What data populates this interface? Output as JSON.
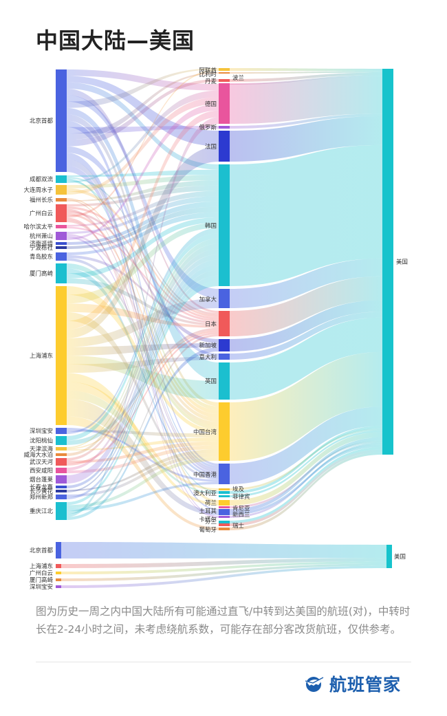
{
  "title": "中国大陆—美国",
  "caption": "图为历史一周之内中国大陆所有可能通过直飞/中转到达美国的航班(对)，中转时长在2-24小时之间，未考虑绕航系数，可能存在部分客改货航班，仅供参考。",
  "brand": {
    "name": "航班管家",
    "icon": "plane-globe-icon"
  },
  "chart_data": [
    {
      "type": "sankey",
      "origins": [
        {
          "name": "北京首都",
          "color": "#4a63e0"
        },
        {
          "name": "成都双流",
          "color": "#1bbfcf"
        },
        {
          "name": "大连周水子",
          "color": "#f5c33b"
        },
        {
          "name": "福州长乐",
          "color": "#e98a3c"
        },
        {
          "name": "广州白云",
          "color": "#f05a5a"
        },
        {
          "name": "哈尔滨太平",
          "color": "#e9559d"
        },
        {
          "name": "杭州萧山",
          "color": "#a05ad8"
        },
        {
          "name": "济南遥墙",
          "color": "#3a4fcf"
        },
        {
          "name": "宁波栎社",
          "color": "#2c3aa0"
        },
        {
          "name": "青岛胶东",
          "color": "#4a63e0"
        },
        {
          "name": "厦门高崎",
          "color": "#1bbfcf"
        },
        {
          "name": "上海浦东",
          "color": "#fdcc2e"
        },
        {
          "name": "深圳宝安",
          "color": "#4a63e0"
        },
        {
          "name": "沈阳桃仙",
          "color": "#1bbfcf"
        },
        {
          "name": "天津滨海",
          "color": "#f5c33b"
        },
        {
          "name": "威海大水泊",
          "color": "#e98a3c"
        },
        {
          "name": "武汉天河",
          "color": "#f05a5a"
        },
        {
          "name": "西安咸阳",
          "color": "#e9559d"
        },
        {
          "name": "烟台蓬莱",
          "color": "#a05ad8"
        },
        {
          "name": "长春龙嘉",
          "color": "#3a4fcf"
        },
        {
          "name": "长沙黄花",
          "color": "#2c3aa0"
        },
        {
          "name": "郑州新郑",
          "color": "#4a63e0"
        },
        {
          "name": "重庆江北",
          "color": "#1bbfcf"
        }
      ],
      "transfers": [
        {
          "name": "阿联酋",
          "color": "#f5c33b"
        },
        {
          "name": "比利时",
          "color": "#e98a3c"
        },
        {
          "name": "丹麦",
          "color": "#f05a5a"
        },
        {
          "name": "波兰",
          "color": "#e9559d"
        },
        {
          "name": "德国",
          "color": "#e9559d"
        },
        {
          "name": "俄罗斯",
          "color": "#a05ad8"
        },
        {
          "name": "法国",
          "color": "#2c3ad0"
        },
        {
          "name": "韩国",
          "color": "#1bbfcf"
        },
        {
          "name": "加拿大",
          "color": "#4a63e0"
        },
        {
          "name": "日本",
          "color": "#f05a5a"
        },
        {
          "name": "新加坡",
          "color": "#2c3ad0"
        },
        {
          "name": "意大利",
          "color": "#4a63e0"
        },
        {
          "name": "英国",
          "color": "#1bbfcf"
        },
        {
          "name": "中国台湾",
          "color": "#fdcc2e"
        },
        {
          "name": "中国香港",
          "color": "#4a63e0"
        },
        {
          "name": "澳大利亚",
          "color": "#1bbfcf"
        },
        {
          "name": "埃及",
          "color": "#f5c33b"
        },
        {
          "name": "菲律宾",
          "color": "#1bbfcf"
        },
        {
          "name": "荷兰",
          "color": "#fdcc2e"
        },
        {
          "name": "土耳其",
          "color": "#4a63e0"
        },
        {
          "name": "肯尼亚",
          "color": "#e9559d"
        },
        {
          "name": "卡塔尔",
          "color": "#a05ad8"
        },
        {
          "name": "新西兰",
          "color": "#4a63e0"
        },
        {
          "name": "芬兰",
          "color": "#1bbfcf"
        },
        {
          "name": "瑞士",
          "color": "#f05a5a"
        },
        {
          "name": "葡萄牙",
          "color": "#e98a3c"
        }
      ],
      "destination": {
        "name": "美国",
        "color": "#17c3cc"
      }
    },
    {
      "type": "sankey",
      "origins": [
        {
          "name": "北京首都",
          "color": "#4a63e0"
        },
        {
          "name": "上海浦东",
          "color": "#f05a5a"
        },
        {
          "name": "广州白云",
          "color": "#fdcc2e"
        },
        {
          "name": "厦门高崎",
          "color": "#e98a3c"
        },
        {
          "name": "深圳宝安",
          "color": "#a05ad8"
        }
      ],
      "destination": {
        "name": "美国",
        "color": "#17c3cc"
      }
    }
  ]
}
